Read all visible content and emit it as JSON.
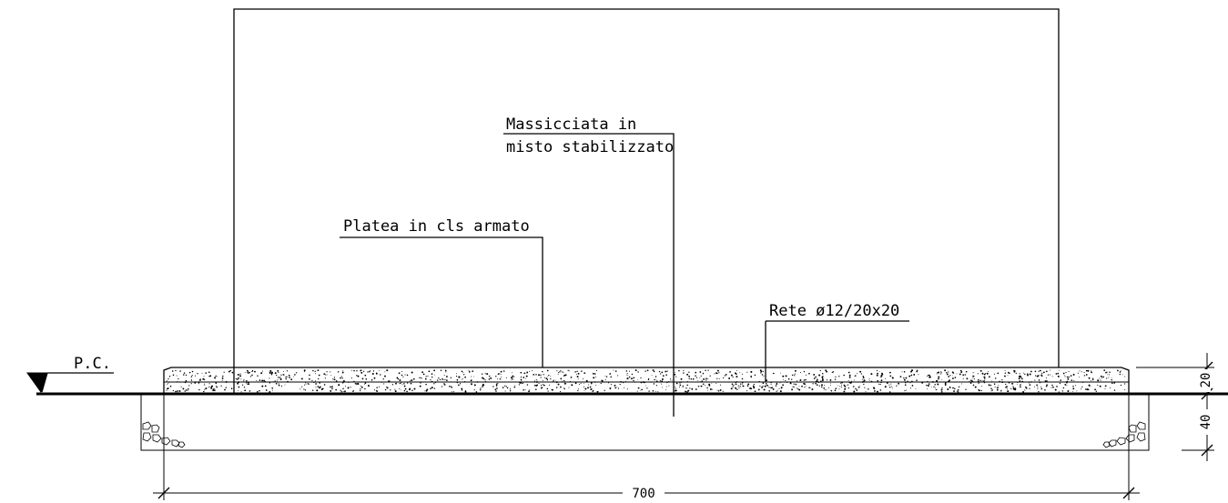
{
  "labels": {
    "massicciata_line1": "Massicciata in",
    "massicciata_line2": "misto stabilizzato",
    "platea": "Platea in cls armato",
    "rete": "Rete ø12/20x20",
    "pc": "P.C."
  },
  "dimensions": {
    "width": "700",
    "slab_thickness": "20",
    "base_depth": "40"
  }
}
